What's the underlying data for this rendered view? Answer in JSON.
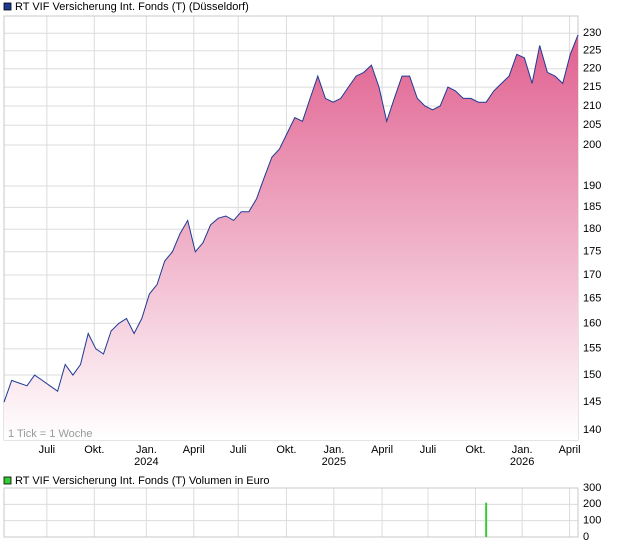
{
  "chart_data": [
    {
      "type": "area",
      "title": "RT VIF Versicherung Int. Fonds (T) (Düsseldorf)",
      "annotation": "1 Tick = 1 Woche",
      "color": "#1f3a93",
      "fill_color": "#e0608f",
      "log_scale": true,
      "grid": true,
      "values": [
        145,
        149,
        148.5,
        148,
        150,
        149,
        148,
        147,
        152,
        150,
        152,
        158,
        155,
        154,
        158.5,
        160,
        161,
        158,
        161,
        166,
        168,
        173,
        175,
        179,
        182,
        175,
        177,
        181,
        182.5,
        183,
        182,
        184,
        184,
        187,
        192,
        197,
        199,
        203,
        207,
        206,
        212,
        218,
        212,
        211,
        212,
        215,
        218,
        219,
        221,
        215,
        206,
        212,
        218,
        218,
        212,
        210,
        209,
        210,
        215,
        214,
        212,
        212,
        211,
        211,
        214,
        216,
        218,
        224,
        223,
        216,
        226.5,
        219,
        218,
        216,
        224,
        229.5
      ],
      "xlim": [
        0,
        75
      ],
      "xticks": [
        {
          "value": 5.6,
          "label": "Juli"
        },
        {
          "value": 11.8,
          "label": "Okt."
        },
        {
          "value": 18.6,
          "label": "Jan.",
          "year": "2024"
        },
        {
          "value": 24.8,
          "label": "April"
        },
        {
          "value": 30.6,
          "label": "Juli"
        },
        {
          "value": 36.9,
          "label": "Okt."
        },
        {
          "value": 43.1,
          "label": "Jan.",
          "year": "2025"
        },
        {
          "value": 49.4,
          "label": "April"
        },
        {
          "value": 55.4,
          "label": "Juli"
        },
        {
          "value": 61.6,
          "label": "Okt."
        },
        {
          "value": 67.7,
          "label": "Jan.",
          "year": "2026"
        },
        {
          "value": 73.9,
          "label": "April"
        }
      ],
      "ylim": [
        138.3,
        235
      ],
      "yticks": [
        140,
        145,
        150,
        155,
        160,
        165,
        170,
        175,
        180,
        185,
        190,
        200,
        205,
        210,
        215,
        220,
        225,
        230
      ]
    },
    {
      "type": "bar",
      "title": "RT VIF Versicherung Int. Fonds (T) Volumen in Euro",
      "color": "#33cc33",
      "x": [
        63
      ],
      "values": [
        210
      ],
      "xlim": [
        0,
        75
      ],
      "ylim": [
        0,
        300
      ],
      "yticks": [
        0,
        100,
        200,
        300
      ]
    }
  ]
}
